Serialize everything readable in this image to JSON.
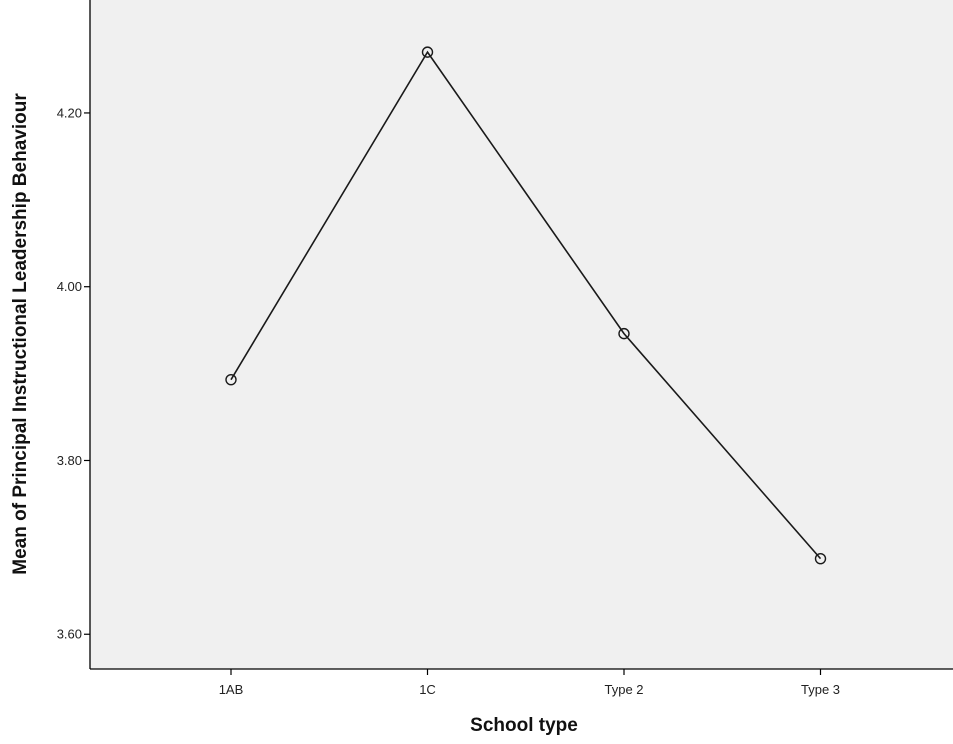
{
  "chart_data": {
    "type": "line",
    "xlabel": "School type",
    "ylabel": "Mean of Principal Instructional Leadership Behaviour",
    "categories": [
      "1AB",
      "1C",
      "Type 2",
      "Type 3"
    ],
    "series": [
      {
        "values": [
          3.893,
          4.27,
          3.946,
          3.687
        ]
      }
    ],
    "ylim": [
      3.56,
      4.33
    ],
    "yticks": [
      3.6,
      3.8,
      4.0,
      4.2
    ],
    "ytick_labels": [
      "3.60",
      "3.80",
      "4.00",
      "4.20"
    ],
    "marker": "open-circle",
    "grid": false,
    "legend": "none",
    "colors": {
      "plot_background": "#f0f0f0",
      "line": "#1a1a1a",
      "axis": "#000000"
    }
  }
}
